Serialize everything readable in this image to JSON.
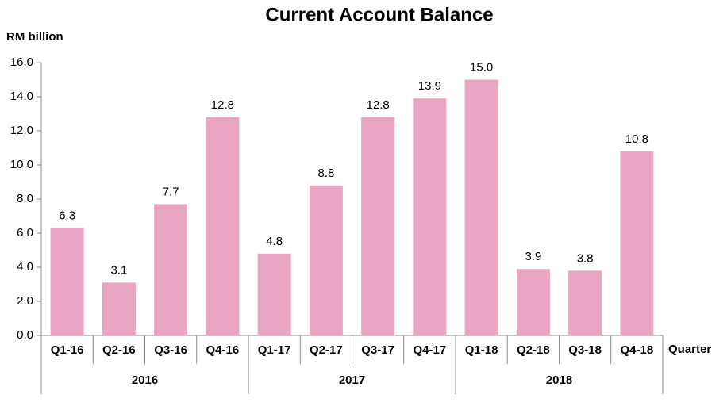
{
  "chart_data": {
    "type": "bar",
    "title": "Current Account Balance",
    "y_label": "RM billion",
    "x_label": "Quarter",
    "categories": [
      "Q1-16",
      "Q2-16",
      "Q3-16",
      "Q4-16",
      "Q1-17",
      "Q2-17",
      "Q3-17",
      "Q4-17",
      "Q1-18",
      "Q2-18",
      "Q3-18",
      "Q4-18"
    ],
    "groups": [
      "2016",
      "2017",
      "2018"
    ],
    "values": [
      6.3,
      3.1,
      7.7,
      12.8,
      4.8,
      8.8,
      12.8,
      13.9,
      15.0,
      3.9,
      3.8,
      10.8
    ],
    "value_labels": [
      "6.3",
      "3.1",
      "7.7",
      "12.8",
      "4.8",
      "8.8",
      "12.8",
      "13.9",
      "15.0",
      "3.9",
      "3.8",
      "10.8"
    ],
    "color": "#e8a6c2",
    "ylim": [
      0,
      16
    ],
    "yticks": [
      {
        "value": 0,
        "label": "0.0"
      },
      {
        "value": 2,
        "label": "2.0"
      },
      {
        "value": 4,
        "label": "4.0"
      },
      {
        "value": 6,
        "label": "6.0"
      },
      {
        "value": 8,
        "label": "8.0"
      },
      {
        "value": 10,
        "label": "10.0"
      },
      {
        "value": 12,
        "label": "12.0"
      },
      {
        "value": 14,
        "label": "14.0"
      },
      {
        "value": 16,
        "label": "16.0"
      }
    ],
    "grid": false
  }
}
